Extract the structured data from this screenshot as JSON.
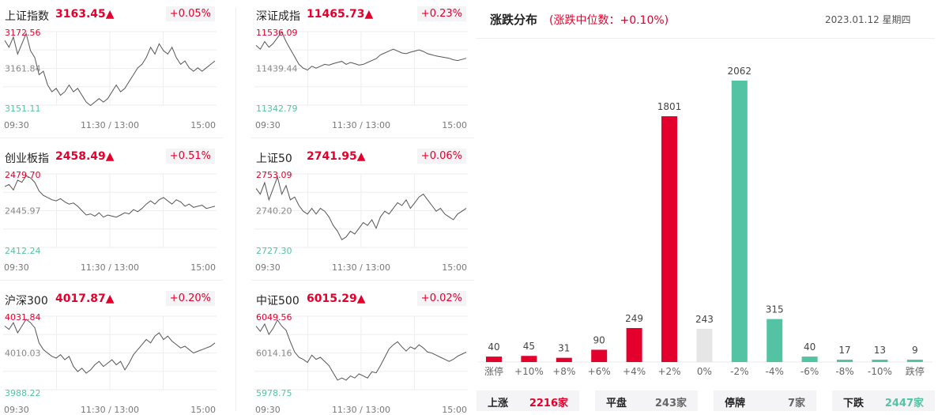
{
  "indices": [
    {
      "name": "上证指数",
      "value": "3163.45▲",
      "pct": "+0.05%",
      "y_high": "3172.56",
      "y_mid": "3161.84",
      "y_low": "3151.11",
      "series": [
        3170,
        3168,
        3171,
        3166,
        3169,
        3172,
        3167,
        3165,
        3160,
        3161,
        3157,
        3155,
        3156,
        3154,
        3155,
        3157,
        3155,
        3156,
        3154,
        3152,
        3151,
        3152,
        3153,
        3152,
        3153,
        3155,
        3157,
        3155,
        3156,
        3158,
        3160,
        3162,
        3163,
        3165,
        3168,
        3166,
        3169,
        3167,
        3166,
        3168,
        3165,
        3163,
        3164,
        3162,
        3161,
        3162,
        3161,
        3162,
        3163,
        3164
      ]
    },
    {
      "name": "深证成指",
      "value": "11465.73▲",
      "pct": "+0.23%",
      "y_high": "11536.09",
      "y_mid": "11439.44",
      "y_low": "11342.79",
      "series": [
        11500,
        11490,
        11510,
        11495,
        11505,
        11520,
        11535,
        11510,
        11490,
        11470,
        11450,
        11440,
        11435,
        11445,
        11440,
        11445,
        11450,
        11448,
        11452,
        11455,
        11458,
        11450,
        11455,
        11452,
        11448,
        11450,
        11455,
        11460,
        11465,
        11475,
        11480,
        11485,
        11490,
        11485,
        11480,
        11478,
        11482,
        11485,
        11488,
        11484,
        11478,
        11475,
        11472,
        11470,
        11468,
        11466,
        11462,
        11460,
        11463,
        11466
      ]
    },
    {
      "name": "创业板指",
      "value": "2458.49▲",
      "pct": "+0.51%",
      "y_high": "2479.70",
      "y_mid": "2445.97",
      "y_low": "2412.24",
      "series": [
        2468,
        2470,
        2465,
        2474,
        2472,
        2478,
        2476,
        2472,
        2464,
        2460,
        2458,
        2456,
        2455,
        2457,
        2454,
        2452,
        2453,
        2450,
        2446,
        2442,
        2443,
        2441,
        2444,
        2440,
        2442,
        2441,
        2440,
        2442,
        2444,
        2443,
        2447,
        2445,
        2448,
        2452,
        2455,
        2452,
        2456,
        2458,
        2455,
        2452,
        2456,
        2454,
        2450,
        2452,
        2449,
        2450,
        2451,
        2448,
        2449,
        2450
      ]
    },
    {
      "name": "上证50",
      "value": "2741.95▲",
      "pct": "+0.06%",
      "y_high": "2753.09",
      "y_mid": "2740.20",
      "y_low": "2727.30",
      "series": [
        2748,
        2746,
        2750,
        2744,
        2748,
        2752,
        2746,
        2749,
        2744,
        2745,
        2742,
        2740,
        2739,
        2741,
        2739,
        2741,
        2740,
        2738,
        2735,
        2733,
        2730,
        2731,
        2733,
        2732,
        2734,
        2736,
        2735,
        2737,
        2734,
        2738,
        2740,
        2739,
        2741,
        2743,
        2742,
        2744,
        2741,
        2743,
        2745,
        2746,
        2744,
        2742,
        2740,
        2741,
        2739,
        2738,
        2737,
        2739,
        2740,
        2741
      ]
    },
    {
      "name": "沪深300",
      "value": "4017.87▲",
      "pct": "+0.20%",
      "y_high": "4031.84",
      "y_mid": "4010.03",
      "y_low": "3988.22",
      "series": [
        4026,
        4024,
        4028,
        4022,
        4026,
        4030,
        4028,
        4025,
        4016,
        4012,
        4010,
        4008,
        4007,
        4009,
        4006,
        4008,
        4002,
        3999,
        4001,
        3998,
        4000,
        4003,
        4005,
        4002,
        4004,
        4006,
        4003,
        4005,
        4000,
        4004,
        4009,
        4012,
        4015,
        4018,
        4016,
        4020,
        4022,
        4018,
        4020,
        4017,
        4015,
        4013,
        4014,
        4012,
        4010,
        4011,
        4012,
        4013,
        4014,
        4016
      ]
    },
    {
      "name": "中证500",
      "value": "6015.29▲",
      "pct": "+0.02%",
      "y_high": "6049.56",
      "y_mid": "6014.16",
      "y_low": "5978.75",
      "series": [
        6040,
        6035,
        6042,
        6032,
        6038,
        6046,
        6040,
        6036,
        6025,
        6015,
        6010,
        6008,
        6005,
        6012,
        6008,
        6010,
        6006,
        6002,
        5995,
        5988,
        5990,
        5988,
        5992,
        5990,
        5994,
        5992,
        5990,
        5996,
        5995,
        6002,
        6010,
        6018,
        6022,
        6025,
        6020,
        6016,
        6020,
        6018,
        6022,
        6019,
        6015,
        6014,
        6012,
        6010,
        6008,
        6006,
        6008,
        6011,
        6013,
        6015
      ]
    }
  ],
  "time_labels": [
    "09:30",
    "11:30 / 13:00",
    "15:00"
  ],
  "distribution": {
    "title": "涨跌分布",
    "subtitle": "(涨跌中位数：+0.10%)",
    "date": "2023.01.12 星期四",
    "colors": {
      "up": "#e3002d",
      "flat": "#e6e6e6",
      "down": "#53c3a3"
    },
    "stats": [
      {
        "label": "上涨",
        "value": "2216家",
        "color": "#e3002d"
      },
      {
        "label": "平盘",
        "value": "243家",
        "color": "#666666"
      },
      {
        "label": "停牌",
        "value": "7家",
        "color": "#666666"
      },
      {
        "label": "下跌",
        "value": "2447家",
        "color": "#53c3a3"
      }
    ]
  },
  "chart_data": {
    "type": "bar",
    "title": "涨跌分布",
    "categories": [
      "涨停",
      "+10%",
      "+8%",
      "+6%",
      "+4%",
      "+2%",
      "0%",
      "-2%",
      "-4%",
      "-6%",
      "-8%",
      "-10%",
      "跌停"
    ],
    "values": [
      40,
      45,
      31,
      90,
      249,
      1801,
      243,
      2062,
      315,
      40,
      17,
      13,
      9
    ],
    "kinds": [
      "up",
      "up",
      "up",
      "up",
      "up",
      "up",
      "flat",
      "down",
      "down",
      "down",
      "down",
      "down",
      "down"
    ]
  }
}
